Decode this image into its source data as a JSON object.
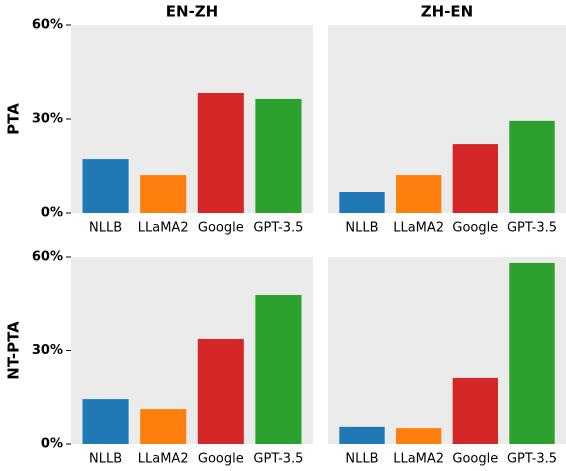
{
  "chart_data": [
    {
      "type": "bar",
      "title": "EN-ZH",
      "ylabel": "PTA",
      "categories": [
        "NLLB",
        "LLaMA2",
        "Google",
        "GPT-3.5"
      ],
      "values": [
        17.2,
        12.1,
        38.3,
        36.4
      ],
      "colors": [
        "#1f77b4",
        "#ff7f0e",
        "#d62728",
        "#2ca02c"
      ],
      "ylim": [
        0,
        60
      ],
      "yticks": [
        {
          "value": 0,
          "label": "0%"
        },
        {
          "value": 30,
          "label": "30%"
        },
        {
          "value": 60,
          "label": "60%"
        }
      ]
    },
    {
      "type": "bar",
      "title": "ZH-EN",
      "categories": [
        "NLLB",
        "LLaMA2",
        "Google",
        "GPT-3.5"
      ],
      "values": [
        6.7,
        12.1,
        22,
        29.4
      ],
      "colors": [
        "#1f77b4",
        "#ff7f0e",
        "#d62728",
        "#2ca02c"
      ],
      "ylim": [
        0,
        60
      ]
    },
    {
      "type": "bar",
      "ylabel": "NT-PTA",
      "categories": [
        "NLLB",
        "LLaMA2",
        "Google",
        "GPT-3.5"
      ],
      "values": [
        14.4,
        11.2,
        33.7,
        47.8
      ],
      "colors": [
        "#1f77b4",
        "#ff7f0e",
        "#d62728",
        "#2ca02c"
      ],
      "ylim": [
        0,
        60
      ],
      "yticks": [
        {
          "value": 0,
          "label": "0%"
        },
        {
          "value": 30,
          "label": "30%"
        },
        {
          "value": 60,
          "label": "60%"
        }
      ]
    },
    {
      "type": "bar",
      "categories": [
        "NLLB",
        "LLaMA2",
        "Google",
        "GPT-3.5"
      ],
      "values": [
        5.5,
        5.1,
        21.2,
        58.1
      ],
      "colors": [
        "#1f77b4",
        "#ff7f0e",
        "#d62728",
        "#2ca02c"
      ],
      "ylim": [
        0,
        60
      ]
    }
  ]
}
